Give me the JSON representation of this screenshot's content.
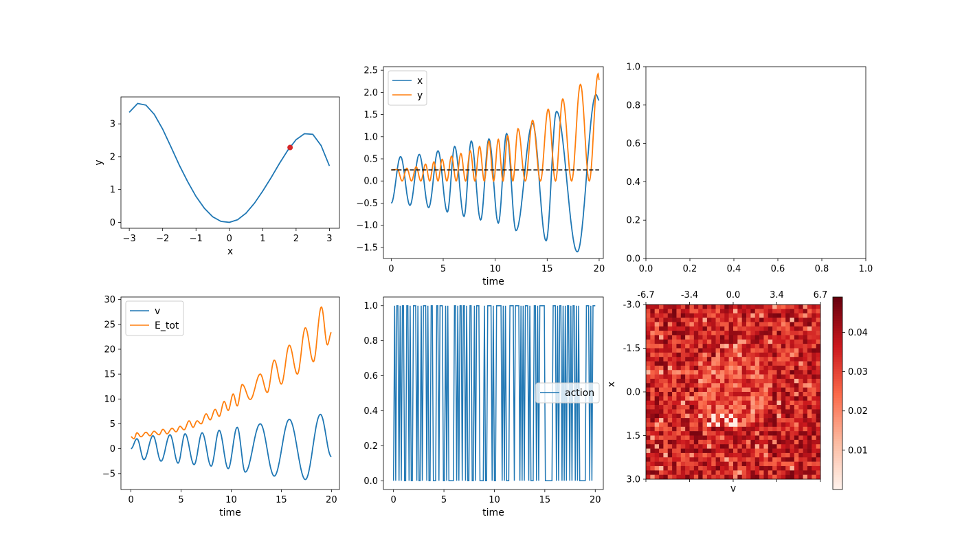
{
  "colors": {
    "blue": "#1f77b4",
    "orange": "#ff7f0e",
    "red_point": "#d62728",
    "dashed": "#000000"
  },
  "chart_data": [
    {
      "id": "potential",
      "type": "line",
      "xlabel": "x",
      "ylabel": "y",
      "xlim": [
        -3.25,
        3.3
      ],
      "ylim": [
        -0.18,
        3.82
      ],
      "xticks": [
        -3,
        -2,
        -1,
        0,
        1,
        2,
        3
      ],
      "yticks": [
        0,
        1,
        2,
        3
      ],
      "series": [
        {
          "x": [
            -3,
            -2.75,
            -2.5,
            -2.25,
            -2,
            -1.75,
            -1.5,
            -1.25,
            -1,
            -0.75,
            -0.5,
            -0.25,
            0,
            0.25,
            0.5,
            0.75,
            1,
            1.25,
            1.5,
            1.75,
            2,
            2.25,
            2.5,
            2.75,
            3
          ],
          "values": [
            3.35,
            3.62,
            3.57,
            3.29,
            2.84,
            2.3,
            1.74,
            1.24,
            0.79,
            0.43,
            0.17,
            0.03,
            0,
            0.08,
            0.28,
            0.58,
            0.95,
            1.36,
            1.79,
            2.19,
            2.52,
            2.7,
            2.68,
            2.34,
            1.72
          ]
        }
      ],
      "point": {
        "x": 1.82,
        "y": 2.28
      }
    },
    {
      "id": "trajectory",
      "type": "line",
      "xlabel": "time",
      "ylabel": "",
      "xlim": [
        -0.75,
        20.4
      ],
      "ylim": [
        -1.75,
        2.58
      ],
      "xticks": [
        0,
        5,
        10,
        15,
        20
      ],
      "yticks": [
        -1.5,
        -1.0,
        -0.5,
        0.0,
        0.5,
        1.0,
        1.5,
        2.0,
        2.5
      ],
      "legend": {
        "location": "upper left",
        "entries": [
          "x",
          "y"
        ]
      },
      "dashed_level": 0.25,
      "dashed_range": [
        0,
        20
      ],
      "series": [
        {
          "name": "x",
          "start": [
            0,
            -0.5
          ],
          "peaks": [
            [
              0.9,
              0.55
            ],
            [
              2.7,
              0.6
            ],
            [
              4.5,
              0.68
            ],
            [
              6.1,
              0.78
            ],
            [
              7.7,
              0.9
            ],
            [
              9.4,
              0.95
            ],
            [
              11.1,
              1.07
            ],
            [
              13.6,
              1.3
            ],
            [
              15.9,
              1.57
            ],
            [
              19.7,
              1.95
            ]
          ],
          "troughs": [
            [
              1.8,
              -0.55
            ],
            [
              3.6,
              -0.6
            ],
            [
              5.4,
              -0.7
            ],
            [
              7.0,
              -0.8
            ],
            [
              8.6,
              -0.88
            ],
            [
              10.3,
              -0.95
            ],
            [
              12.0,
              -1.12
            ],
            [
              14.9,
              -1.35
            ],
            [
              17.9,
              -1.6
            ]
          ],
          "end": [
            20,
            1.82
          ]
        },
        {
          "name": "y",
          "peaks": [
            [
              0.6,
              0.26
            ],
            [
              1.5,
              0.29
            ],
            [
              2.4,
              0.32
            ],
            [
              3.3,
              0.38
            ],
            [
              4.1,
              0.43
            ],
            [
              4.9,
              0.49
            ],
            [
              5.8,
              0.56
            ],
            [
              6.7,
              0.62
            ],
            [
              7.6,
              0.68
            ],
            [
              8.5,
              0.78
            ],
            [
              9.4,
              0.9
            ],
            [
              10.3,
              0.94
            ],
            [
              11.2,
              1.02
            ],
            [
              12.2,
              1.18
            ],
            [
              13.6,
              1.37
            ],
            [
              15.1,
              1.62
            ],
            [
              16.5,
              1.85
            ],
            [
              18.2,
              2.18
            ],
            [
              19.9,
              2.42
            ]
          ],
          "end": [
            20,
            2.28
          ]
        }
      ]
    },
    {
      "id": "empty",
      "type": "line",
      "xlim": [
        0,
        1
      ],
      "ylim": [
        0,
        1
      ],
      "xticks": [
        0.0,
        0.2,
        0.4,
        0.6,
        0.8,
        1.0
      ],
      "yticks": [
        0.0,
        0.2,
        0.4,
        0.6,
        0.8,
        1.0
      ]
    },
    {
      "id": "energy",
      "type": "line",
      "xlabel": "time",
      "ylabel": "",
      "xlim": [
        -1.0,
        20.8
      ],
      "ylim": [
        -8.2,
        30.5
      ],
      "xticks": [
        0,
        5,
        10,
        15,
        20
      ],
      "yticks": [
        -5,
        0,
        5,
        10,
        15,
        20,
        25,
        30
      ],
      "legend": {
        "location": "upper left",
        "entries": [
          "v",
          "E_tot"
        ]
      },
      "series": [
        {
          "name": "v",
          "start": [
            0,
            0
          ],
          "peaks": [
            [
              0.6,
              2.0
            ],
            [
              2.2,
              2.6
            ],
            [
              3.9,
              2.8
            ],
            [
              5.4,
              3.0
            ],
            [
              7.1,
              3.2
            ],
            [
              8.8,
              3.7
            ],
            [
              10.6,
              4.3
            ],
            [
              12.9,
              5.0
            ],
            [
              15.8,
              5.9
            ],
            [
              18.9,
              6.9
            ]
          ],
          "troughs": [
            [
              1.3,
              -2.2
            ],
            [
              3.0,
              -2.5
            ],
            [
              4.7,
              -2.9
            ],
            [
              6.3,
              -3.2
            ],
            [
              8.0,
              -3.5
            ],
            [
              9.7,
              -4.0
            ],
            [
              11.4,
              -4.7
            ],
            [
              14.3,
              -5.5
            ],
            [
              17.4,
              -6.2
            ]
          ],
          "end": [
            20,
            -1.6
          ]
        },
        {
          "name": "E_tot",
          "start": [
            0,
            2.4
          ],
          "peaks": [
            [
              0.6,
              3.2
            ],
            [
              1.5,
              3.3
            ],
            [
              2.3,
              3.5
            ],
            [
              3.2,
              3.9
            ],
            [
              4.1,
              4.1
            ],
            [
              4.9,
              4.5
            ],
            [
              5.8,
              5.6
            ],
            [
              6.6,
              5.6
            ],
            [
              7.5,
              7.0
            ],
            [
              8.4,
              7.9
            ],
            [
              9.3,
              9.5
            ],
            [
              10.2,
              11.0
            ],
            [
              11.1,
              12.9
            ],
            [
              12.9,
              15.0
            ],
            [
              14.3,
              17.8
            ],
            [
              15.8,
              20.8
            ],
            [
              17.4,
              24.3
            ],
            [
              19.0,
              28.5
            ]
          ],
          "troughs": [
            [
              0.3,
              2.0
            ],
            [
              1.0,
              2.4
            ],
            [
              1.9,
              2.6
            ],
            [
              2.8,
              2.8
            ],
            [
              3.6,
              3.0
            ],
            [
              4.5,
              3.4
            ],
            [
              5.3,
              3.8
            ],
            [
              6.2,
              4.3
            ],
            [
              7.0,
              5.0
            ],
            [
              7.9,
              5.8
            ],
            [
              8.8,
              6.5
            ],
            [
              9.7,
              7.7
            ],
            [
              10.6,
              8.6
            ],
            [
              11.9,
              9.9
            ],
            [
              13.6,
              11.3
            ],
            [
              15.0,
              13.0
            ],
            [
              16.6,
              15.0
            ],
            [
              18.2,
              17.5
            ],
            [
              19.6,
              20.9
            ]
          ],
          "end": [
            20,
            23.4
          ]
        }
      ]
    },
    {
      "id": "actions",
      "type": "line",
      "xlabel": "time",
      "ylabel": "",
      "xlim": [
        -1.0,
        20.8
      ],
      "ylim": [
        -0.05,
        1.05
      ],
      "xticks": [
        0,
        5,
        10,
        15,
        20
      ],
      "yticks": [
        0.0,
        0.2,
        0.4,
        0.6,
        0.8,
        1.0
      ],
      "legend": {
        "location": "center right",
        "entries": [
          "action"
        ]
      },
      "series": [
        {
          "name": "action",
          "values": [
            0,
            1,
            0,
            1,
            1,
            0,
            1,
            0,
            1,
            1,
            0,
            0,
            1,
            1,
            0,
            1,
            0,
            0,
            1,
            1,
            1,
            0,
            1,
            0,
            0,
            1,
            0,
            1,
            1,
            1,
            0,
            1,
            0,
            0,
            1,
            1,
            0,
            0,
            0,
            1,
            1,
            0,
            1,
            1,
            1,
            0,
            0,
            1,
            0,
            1,
            0,
            0,
            0,
            0,
            0,
            1,
            1,
            0,
            1,
            0,
            1,
            1,
            0,
            1,
            1,
            0,
            1,
            0,
            0,
            1,
            1,
            0,
            0,
            1,
            0,
            1,
            1,
            1,
            0,
            0,
            0,
            0,
            1,
            0,
            0,
            1,
            1,
            1,
            1,
            0,
            1,
            0,
            0,
            1,
            1,
            1,
            1,
            1,
            0,
            1,
            0,
            1,
            0,
            0,
            0,
            1,
            1,
            1,
            1,
            0,
            1,
            1,
            1,
            1,
            0,
            1,
            0,
            1,
            0,
            1,
            1,
            1,
            0,
            1,
            0,
            0,
            0,
            1,
            1,
            0,
            1,
            0,
            1,
            1,
            1,
            1,
            1,
            0,
            0,
            0,
            0,
            0,
            0,
            0,
            1,
            1,
            1,
            0,
            1,
            0,
            1,
            1,
            0,
            1,
            0,
            1,
            0,
            1,
            1,
            0,
            1,
            0,
            1,
            1,
            0,
            1,
            0,
            1,
            0,
            0,
            0,
            0,
            0,
            0,
            1,
            1,
            1,
            0,
            1,
            0,
            1,
            1,
            1
          ]
        }
      ]
    },
    {
      "id": "heatmap",
      "type": "heatmap",
      "xlabel": "v",
      "ylabel": "x",
      "x_ticklabels": [
        "-6.7",
        "-3.4",
        "0.0",
        "3.4",
        "6.7"
      ],
      "y_ticklabels": [
        "-3.0",
        "-1.5",
        "0.0",
        "1.5",
        "3.0"
      ],
      "grid": [
        40,
        40
      ],
      "value_range": [
        0.0,
        0.049
      ],
      "colorbar_ticks": [
        0.01,
        0.02,
        0.03,
        0.04
      ],
      "colormap": "Reds"
    }
  ]
}
